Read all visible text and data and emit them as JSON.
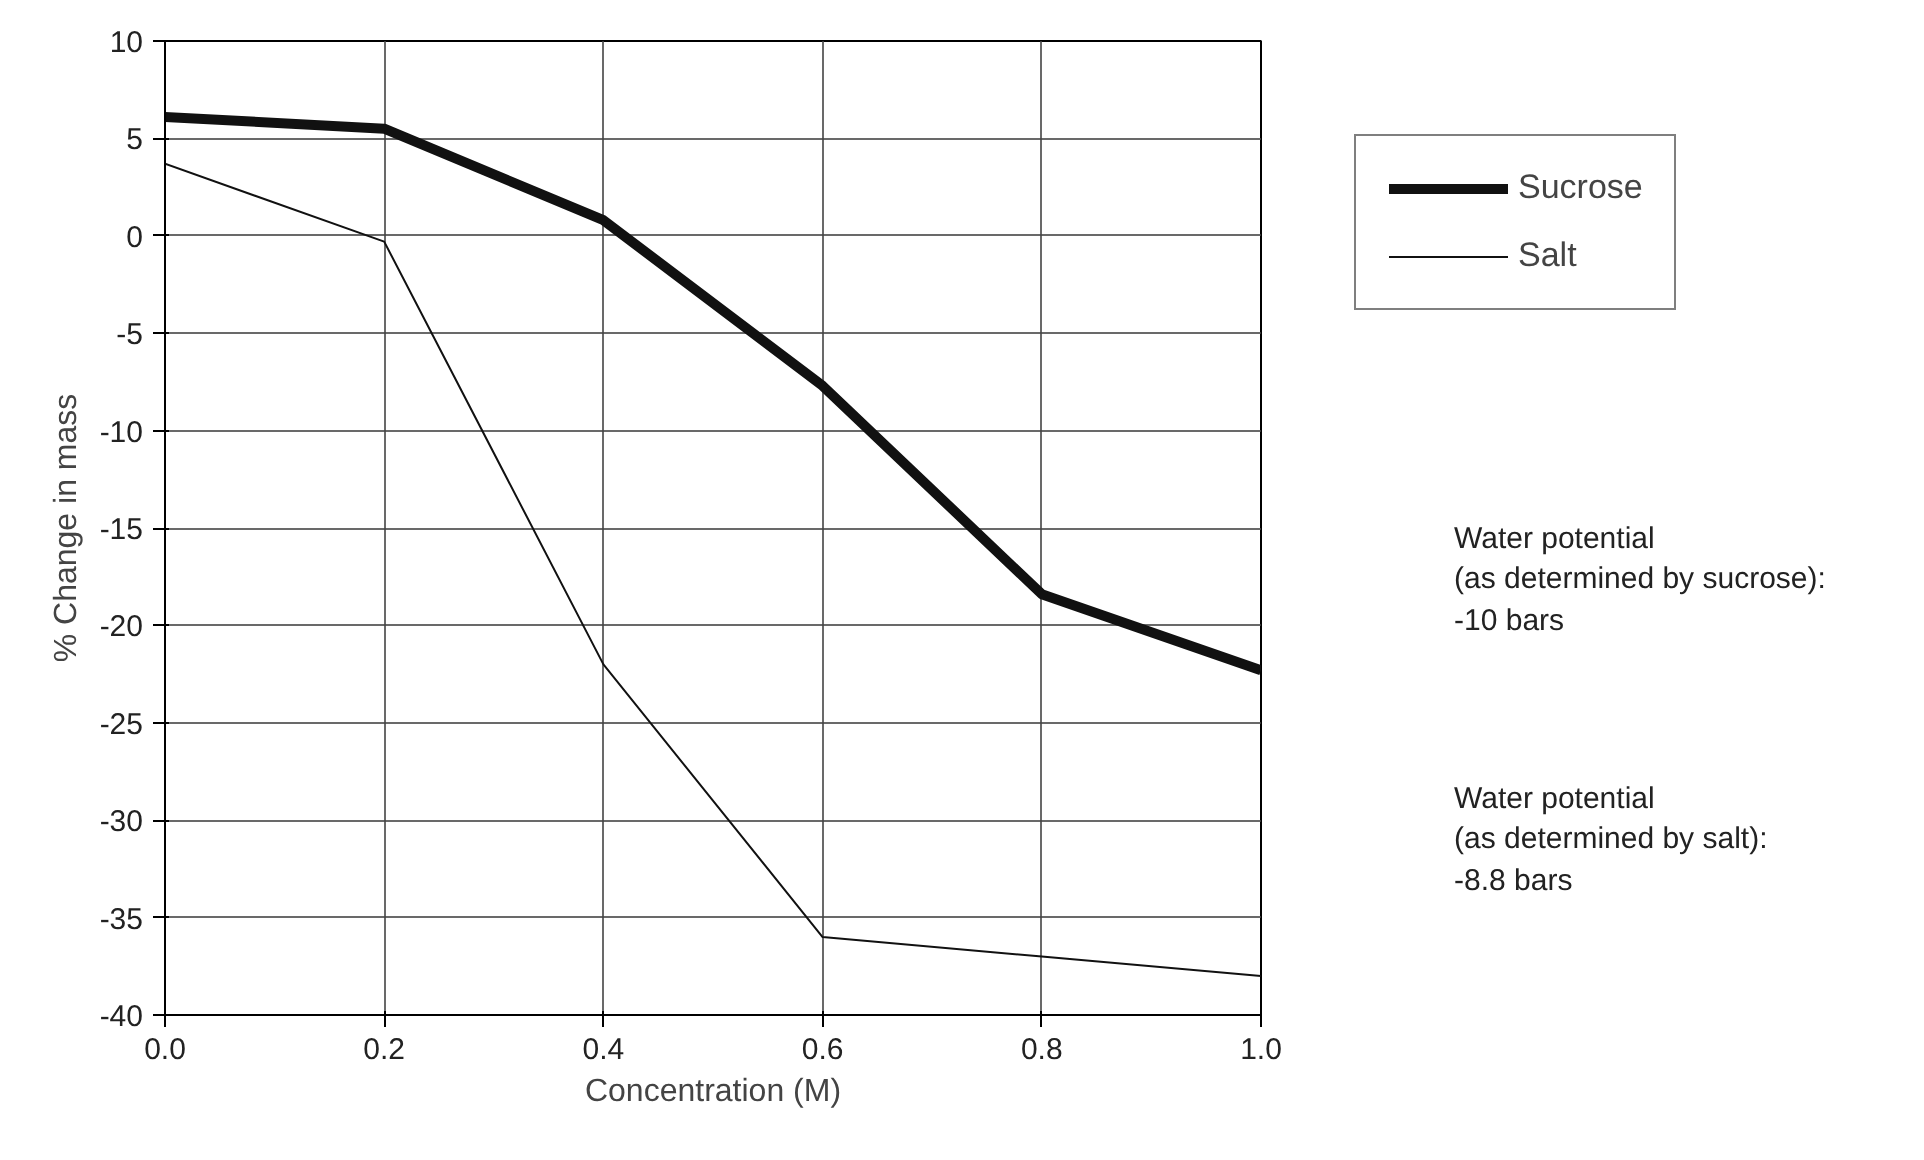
{
  "chart_data": {
    "type": "line",
    "xlabel": "Concentration (M)",
    "ylabel": "% Change in mass",
    "x": [
      0,
      0.2,
      0.4,
      0.6,
      0.8,
      1.0
    ],
    "series": [
      {
        "name": "Sucrose",
        "color": "#111111",
        "values": [
          6.1,
          5.5,
          0.8,
          -7.7,
          -18.4,
          -22.3
        ]
      },
      {
        "name": "Salt",
        "color": "#111111",
        "values": [
          3.7,
          -0.3,
          -22,
          -36,
          -37,
          -38
        ]
      }
    ],
    "xlim": [
      0,
      1.0
    ],
    "ylim": [
      -40,
      10
    ],
    "xticks": [
      {
        "value": 0,
        "label": "0.0"
      },
      0.2,
      0.4,
      0.6,
      0.8,
      {
        "value": 1.0,
        "label": "1.0"
      }
    ],
    "yticks": [
      -40,
      -35,
      -30,
      -25,
      -20,
      -15,
      -10,
      -5,
      0,
      5,
      10
    ],
    "grid": true,
    "legend": "right",
    "line_style": "solid",
    "marker": "none",
    "annotations": [
      "Water potential\n(as determined by sucrose):\n-10 bars",
      "Water potential\n(as determined by salt):\n-8.8 bars"
    ]
  }
}
